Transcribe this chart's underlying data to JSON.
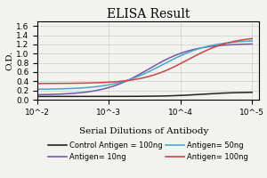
{
  "title": "ELISA Result",
  "ylabel": "O.D.",
  "xlabel": "Serial Dilutions of Antibody",
  "ylim": [
    0,
    1.7
  ],
  "yticks": [
    0,
    0.2,
    0.4,
    0.6,
    0.8,
    1.0,
    1.2,
    1.4,
    1.6
  ],
  "xlim_left": 0.01,
  "xlim_right": 8e-06,
  "lines": [
    {
      "label": "Control Antigen = 100ng",
      "color": "#222222",
      "y_high": 0.165,
      "y_low": 0.07,
      "mid_log": -4.3,
      "steep": 4.0
    },
    {
      "label": "Antigen= 10ng",
      "color": "#7755aa",
      "y_high": 1.22,
      "y_low": 0.1,
      "mid_log": -3.55,
      "steep": 3.2
    },
    {
      "label": "Antigen= 50ng",
      "color": "#44aacc",
      "y_high": 1.3,
      "y_low": 0.22,
      "mid_log": -3.75,
      "steep": 3.0
    },
    {
      "label": "Antigen= 100ng",
      "color": "#cc4444",
      "y_high": 1.38,
      "y_low": 0.35,
      "mid_log": -4.1,
      "steep": 3.2
    }
  ],
  "background_color": "#f2f2ee",
  "grid_color": "#cccccc",
  "title_fontsize": 10,
  "label_fontsize": 7.5,
  "tick_fontsize": 6.5,
  "legend_fontsize": 6.0
}
